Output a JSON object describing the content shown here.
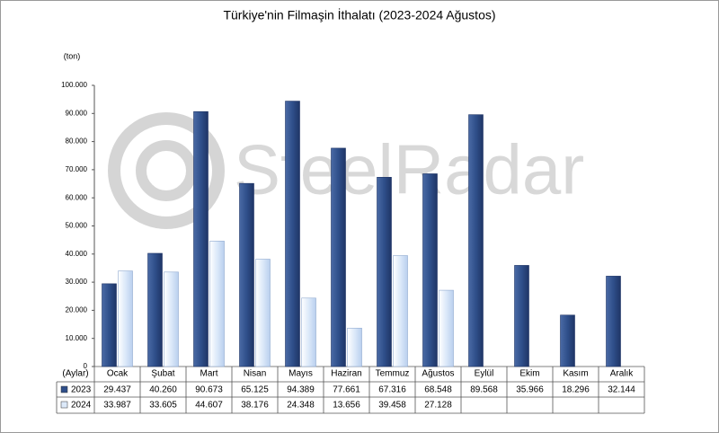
{
  "chart_data": {
    "type": "bar",
    "title": "Türkiye'nin Filmaşin İthalatı (2023-2024 Ağustos)",
    "y_label": "(ton)",
    "x_label": "(Aylar)",
    "watermark": "SteelRadar",
    "categories": [
      "Ocak",
      "Şubat",
      "Mart",
      "Nisan",
      "Mayıs",
      "Haziran",
      "Temmuz",
      "Ağustos",
      "Eylül",
      "Ekim",
      "Kasım",
      "Aralık"
    ],
    "series": [
      {
        "name": "2023",
        "color": "#2f4f8a",
        "values": [
          29437,
          40260,
          90673,
          65125,
          94389,
          77661,
          67316,
          68548,
          89568,
          35966,
          18296,
          32144
        ],
        "value_labels": [
          "29.437",
          "40.260",
          "90.673",
          "65.125",
          "94.389",
          "77.661",
          "67.316",
          "68.548",
          "89.568",
          "35.966",
          "18.296",
          "32.144"
        ]
      },
      {
        "name": "2024",
        "color": "#dce9f9",
        "values": [
          33987,
          33605,
          44607,
          38176,
          24348,
          13656,
          39458,
          27128,
          null,
          null,
          null,
          null
        ],
        "value_labels": [
          "33.987",
          "33.605",
          "44.607",
          "38.176",
          "24.348",
          "13.656",
          "39.458",
          "27.128",
          null,
          null,
          null,
          null
        ]
      }
    ],
    "ylim": [
      0,
      100000
    ],
    "yticks": [
      0,
      {
        "value": 10000,
        "label": "10.000"
      },
      {
        "value": 20000,
        "label": "20.000"
      },
      {
        "value": 30000,
        "label": "30.000"
      },
      {
        "value": 40000,
        "label": "40.000"
      },
      {
        "value": 50000,
        "label": "50.000"
      },
      {
        "value": 60000,
        "label": "60.000"
      },
      {
        "value": 70000,
        "label": "70.000"
      },
      {
        "value": 80000,
        "label": "80.000"
      },
      {
        "value": 90000,
        "label": "90.000"
      },
      {
        "value": 100000,
        "label": "100.000"
      }
    ],
    "grid": false
  }
}
